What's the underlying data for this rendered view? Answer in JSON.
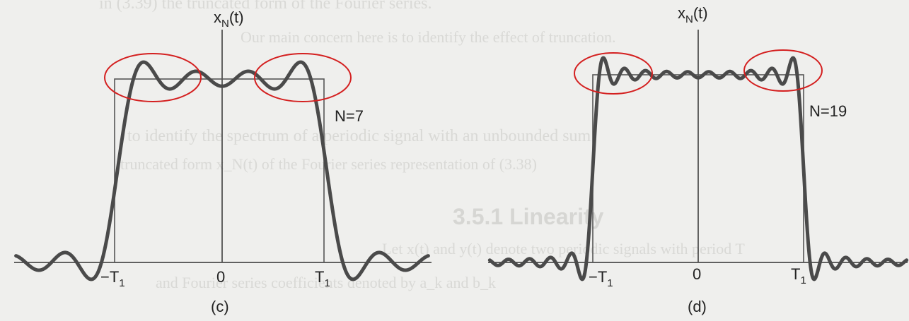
{
  "figures": [
    {
      "id": "c",
      "caption": "(c)",
      "ylabel": "x_N(t)",
      "ylabel_main": "x",
      "ylabel_sub": "N",
      "ylabel_tail": "(t)",
      "n_label": "N=7",
      "N": 7,
      "tick_left": "−T",
      "tick_left_sub": "1",
      "tick_zero": "0",
      "tick_right": "T",
      "tick_right_sub": "1"
    },
    {
      "id": "d",
      "caption": "(d)",
      "ylabel": "x_N(t)",
      "ylabel_main": "x",
      "ylabel_sub": "N",
      "ylabel_tail": "(t)",
      "n_label": "N=19",
      "N": 19,
      "tick_left": "−T",
      "tick_left_sub": "1",
      "tick_zero": "0",
      "tick_right": "T",
      "tick_right_sub": "1"
    }
  ],
  "highlight_color": "#d42020",
  "bleed_through": {
    "line1": "in (3.39) the truncated form of the Fourier series.",
    "line2": "Our main concern here is to identify the effect of truncation.",
    "line3": "to identify the spectrum of a periodic signal with an unbounded sum",
    "line4": "truncated form x_N(t) of the Fourier series representation of (3.38)",
    "section": "3.5.1 Linearity",
    "line5": "Let x(t) and y(t) denote two periodic signals with period T",
    "line6": "and Fourier series coefficients denoted by a_k and b_k"
  }
}
